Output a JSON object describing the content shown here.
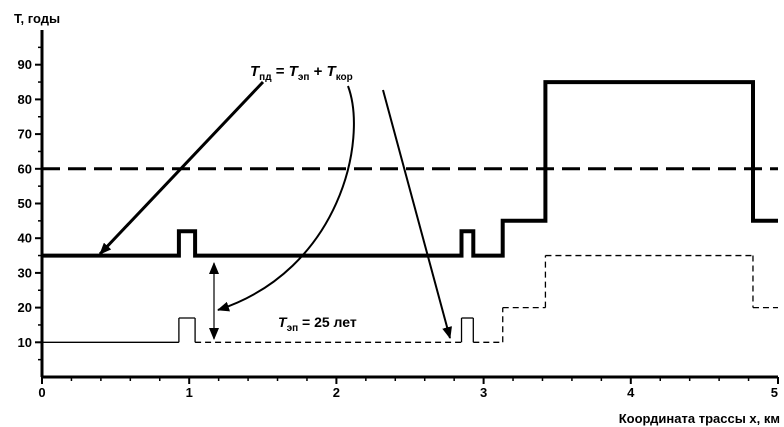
{
  "chart_data": {
    "type": "line",
    "title": "",
    "xlabel": "Координата трассы x, км",
    "ylabel": "T, годы",
    "xlim": [
      0,
      5
    ],
    "ylim": [
      0,
      100
    ],
    "x_ticks": [
      0,
      1,
      2,
      3,
      4,
      5
    ],
    "y_ticks": [
      10,
      20,
      30,
      40,
      50,
      60,
      70,
      80,
      90
    ],
    "grid": false,
    "reference_lines": [
      {
        "axis": "y",
        "value": 60,
        "style": "dashed"
      }
    ],
    "series": [
      {
        "style": "thick-solid",
        "points": [
          [
            0,
            35
          ],
          [
            0.93,
            35
          ],
          [
            0.93,
            42
          ],
          [
            1.04,
            42
          ],
          [
            1.04,
            35
          ],
          [
            2.85,
            35
          ],
          [
            2.85,
            42
          ],
          [
            2.93,
            42
          ],
          [
            2.93,
            35
          ],
          [
            3.13,
            35
          ],
          [
            3.13,
            45
          ],
          [
            3.42,
            45
          ],
          [
            3.42,
            85
          ],
          [
            4.83,
            85
          ],
          [
            4.83,
            45
          ],
          [
            5,
            45
          ]
        ]
      },
      {
        "style": "thin",
        "points": [
          [
            0,
            10
          ],
          [
            0.93,
            10
          ],
          [
            0.93,
            17
          ],
          [
            1.04,
            17
          ],
          [
            1.04,
            10
          ],
          [
            2.85,
            10
          ],
          [
            2.85,
            17
          ],
          [
            2.93,
            17
          ],
          [
            2.93,
            10
          ],
          [
            3.13,
            10
          ],
          [
            3.13,
            20
          ],
          [
            3.42,
            20
          ],
          [
            3.42,
            35
          ],
          [
            4.83,
            35
          ],
          [
            4.83,
            20
          ],
          [
            5,
            20
          ]
        ]
      }
    ],
    "annotations": {
      "formula": {
        "T": "T",
        "pd_sub": "пд",
        "eq": " = ",
        "T2": "T",
        "en_sub": "эп",
        "plus": " + ",
        "T3": "T",
        "kor_sub": "кор"
      },
      "label": {
        "T": "T",
        "en_sub": "эп",
        "value": " = 25 лет"
      }
    }
  }
}
